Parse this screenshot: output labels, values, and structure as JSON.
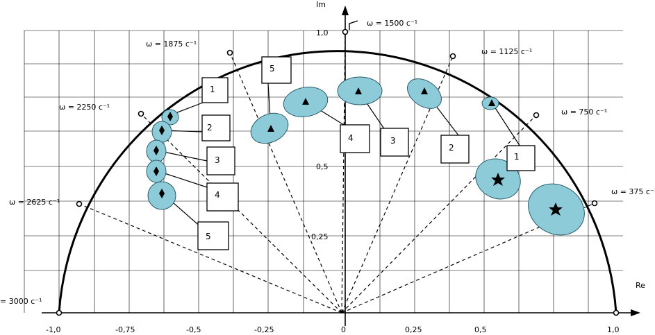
{
  "axes": {
    "x_label": "Re",
    "y_label": "Im",
    "x_ticks": [
      "-1,0",
      "-0,75",
      "-0,5",
      "-0,25",
      "0",
      "0,25",
      "0,5",
      "1,0"
    ],
    "y_ticks": [
      "1,0",
      "0,5",
      "0,25"
    ]
  },
  "frequency_labels": {
    "w3000": "= 3000 c⁻¹",
    "w2625": "ω = 2625 c⁻¹",
    "w2250": "ω = 2250 c⁻¹",
    "w1875": "ω = 1875 c⁻¹",
    "w1500": "ω = 1500 c⁻¹",
    "w1125": "ω = 1125 c⁻¹",
    "w750": "ω = 750 c⁻¹",
    "w375": "ω = 375 c⁻¹"
  },
  "diamond_group": {
    "callouts": [
      "1",
      "2",
      "3",
      "4",
      "5"
    ]
  },
  "triangle_group": {
    "callouts": [
      "5",
      "4",
      "3",
      "2",
      "1"
    ]
  },
  "colors": {
    "ellipse_fill": "#8ecbd8",
    "ellipse_stroke": "#2a5a6a",
    "grid": "#000000"
  }
}
